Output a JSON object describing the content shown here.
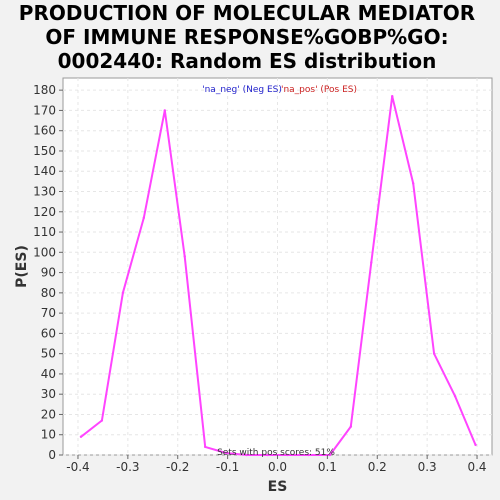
{
  "chart_data": {
    "type": "line",
    "title_lines": [
      "PRODUCTION OF MOLECULAR MEDIATOR",
      "OF IMMUNE RESPONSE%GOBP%GO:",
      "0002440: Random ES distribution"
    ],
    "xlabel": "ES",
    "ylabel": "P(ES)",
    "xlim": [
      -0.43,
      0.43
    ],
    "ylim": [
      0,
      186
    ],
    "x_ticks": [
      -0.4,
      -0.3,
      -0.2,
      -0.1,
      0.0,
      0.1,
      0.2,
      0.3,
      0.4
    ],
    "x_tick_labels": [
      "-0.4",
      "-0.3",
      "-0.2",
      "-0.1",
      "0.0",
      "0.1",
      "0.2",
      "0.3",
      "0.4"
    ],
    "y_ticks": [
      0,
      10,
      20,
      30,
      40,
      50,
      60,
      70,
      80,
      90,
      100,
      110,
      120,
      130,
      140,
      150,
      160,
      170,
      180
    ],
    "y_tick_labels": [
      "0",
      "10",
      "20",
      "30",
      "40",
      "50",
      "60",
      "70",
      "80",
      "90",
      "100",
      "110",
      "120",
      "130",
      "140",
      "150",
      "160",
      "170",
      "180"
    ],
    "grid": true,
    "series": [
      {
        "color": "#ff44ff",
        "x": [
          -0.394,
          -0.352,
          -0.31,
          -0.268,
          -0.226,
          -0.186,
          -0.145,
          -0.103,
          -0.062,
          -0.02,
          0.02,
          0.062,
          0.105,
          0.147,
          0.188,
          0.23,
          0.272,
          0.314,
          0.356,
          0.397
        ],
        "y": [
          9,
          17,
          80,
          117,
          170,
          98,
          4,
          1,
          0,
          0,
          0,
          0,
          0,
          14,
          95,
          177,
          134,
          50,
          29,
          5
        ]
      }
    ],
    "legend": {
      "placement": "top",
      "entries": [
        {
          "text": "'na_neg' (Neg ES)",
          "color": "#2222cc"
        },
        {
          "text": "'na_pos' (Pos ES)",
          "color": "#cc2222"
        }
      ]
    },
    "annotation": "Sets with pos scores: 51%"
  }
}
